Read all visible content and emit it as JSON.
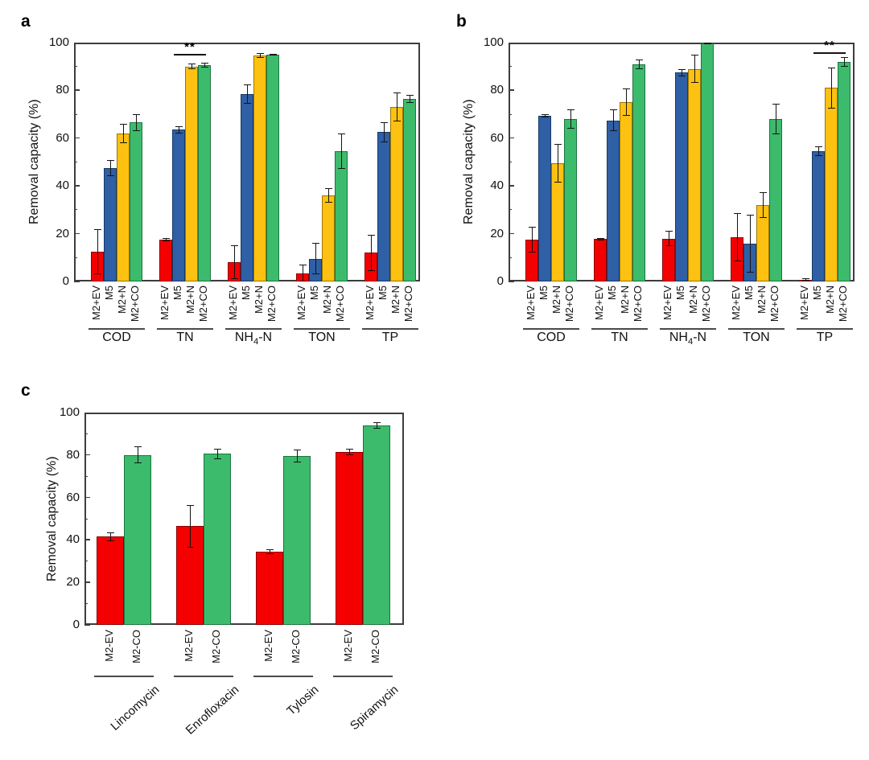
{
  "figure": {
    "description": "Three-panel bar figure of removal capacity (%)",
    "panel_letters": [
      "a",
      "b",
      "c"
    ]
  },
  "chart_data": [
    {
      "id": "a",
      "type": "bar",
      "panel_label": "a",
      "ylabel": "Removal capacity (%)",
      "ylim": [
        0,
        100
      ],
      "yticks": [
        0,
        20,
        40,
        60,
        80,
        100
      ],
      "minor_tick_step": 10,
      "grid": false,
      "legend": "none",
      "categories": [
        "COD",
        "TN",
        "NH₄-N",
        "TON",
        "TP"
      ],
      "series": [
        {
          "name": "M2+EV",
          "color": "#f40000",
          "border": "#8c0000",
          "values": [
            12.5,
            17.5,
            8,
            3.5,
            12
          ],
          "errors": [
            9.5,
            0.7,
            7,
            3.5,
            7.5
          ]
        },
        {
          "name": "M5",
          "color": "#2f5fa5",
          "border": "#163a66",
          "values": [
            47.5,
            63.5,
            78.5,
            9.5,
            62.5
          ],
          "errors": [
            3.5,
            1.5,
            4,
            6.5,
            4.2
          ]
        },
        {
          "name": "M2+N",
          "color": "#fdc111",
          "border": "#9a7600",
          "values": [
            62,
            90,
            94.7,
            36,
            73
          ],
          "errors": [
            4,
            1.2,
            1,
            3,
            6
          ]
        },
        {
          "name": "M2+CO",
          "color": "#3cbb6c",
          "border": "#1c7440",
          "values": [
            66.5,
            90.5,
            95,
            54.5,
            76.5
          ],
          "errors": [
            3.5,
            1,
            0.4,
            7.5,
            1.7
          ]
        }
      ],
      "significance": {
        "text": "**",
        "category_index": 1,
        "from_series": 1,
        "to_series": 3,
        "y_value": 95.3
      }
    },
    {
      "id": "b",
      "type": "bar",
      "panel_label": "b",
      "ylabel": "Removal capacity (%)",
      "ylim": [
        0,
        100
      ],
      "yticks": [
        0,
        20,
        40,
        60,
        80,
        100
      ],
      "minor_tick_step": 10,
      "grid": false,
      "legend": "none",
      "categories": [
        "COD",
        "TN",
        "NH₄-N",
        "TON",
        "TP"
      ],
      "series": [
        {
          "name": "M2+EV",
          "color": "#f40000",
          "border": "#8c0000",
          "values": [
            17.5,
            17.8,
            18,
            18.5,
            0.8
          ],
          "errors": [
            5.5,
            0.5,
            3.2,
            10,
            0.5
          ]
        },
        {
          "name": "M5",
          "color": "#2f5fa5",
          "border": "#163a66",
          "values": [
            69.3,
            67.5,
            87.5,
            15.8,
            54.5
          ],
          "errors": [
            0.6,
            4.5,
            1.5,
            12,
            2
          ]
        },
        {
          "name": "M2+N",
          "color": "#fdc111",
          "border": "#9a7600",
          "values": [
            49.5,
            75,
            89,
            32,
            81
          ],
          "errors": [
            8,
            5.8,
            6,
            5.5,
            8.5
          ]
        },
        {
          "name": "M2+CO",
          "color": "#3cbb6c",
          "border": "#1c7440",
          "values": [
            68,
            91,
            99.8,
            68,
            92
          ],
          "errors": [
            4,
            2,
            0.4,
            6.5,
            2
          ]
        }
      ],
      "significance": {
        "text": "**",
        "category_index": 4,
        "from_series": 1,
        "to_series": 3,
        "y_value": 96
      }
    },
    {
      "id": "c",
      "type": "bar",
      "panel_label": "c",
      "ylabel": "Removal capacity (%)",
      "ylim": [
        0,
        100
      ],
      "yticks": [
        0,
        20,
        40,
        60,
        80,
        100
      ],
      "minor_tick_step": 10,
      "grid": false,
      "legend": "none",
      "categories": [
        "Lincomycin",
        "Enrofloxacin",
        "Tylosin",
        "Spiramycin"
      ],
      "series": [
        {
          "name": "M2-EV",
          "color": "#f40000",
          "border": "#8c0000",
          "values": [
            41.5,
            46.5,
            34.5,
            81.5
          ],
          "errors": [
            2,
            10,
            1,
            1.5
          ]
        },
        {
          "name": "M2-CO",
          "color": "#3cbb6c",
          "border": "#1c7440",
          "values": [
            80,
            80.5,
            79.5,
            94
          ],
          "errors": [
            4,
            2.5,
            3,
            1.5
          ]
        }
      ],
      "significance": null
    }
  ]
}
